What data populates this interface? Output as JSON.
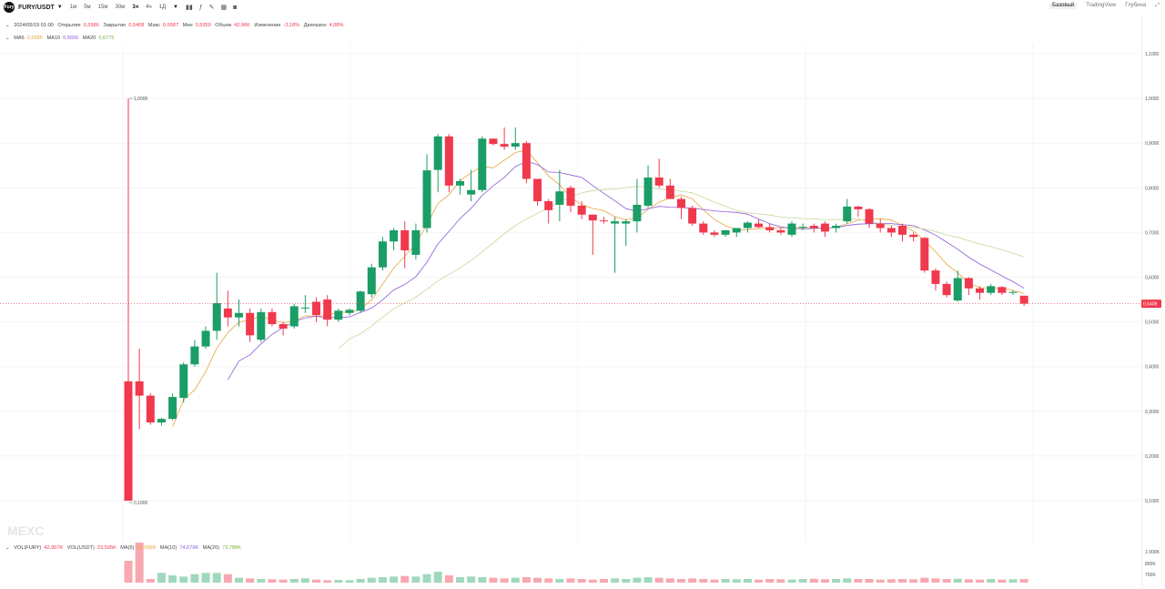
{
  "toolbar": {
    "pair": "FURY/USDT",
    "intervals": [
      "1м",
      "5м",
      "15м",
      "30м",
      "1ч",
      "4ч",
      "1Д"
    ],
    "tools": [
      "candles-icon",
      "indicator-icon",
      "pencil-icon",
      "grid-icon",
      "camera-icon"
    ],
    "views": [
      "Базовый",
      "TradingView",
      "Глубина"
    ],
    "active_view": "Базовый"
  },
  "info": {
    "date": "2024/05/19 01:00",
    "open_label": "Открытие",
    "open": "0,5586",
    "close_label": "Закрытие",
    "close": "0,5408",
    "high_label": "Макс",
    "high": "0,5587",
    "low_label": "Мин",
    "low": "0,5359",
    "volume_label": "Объем",
    "volume": "42,96K",
    "change_label": "Изменение",
    "change": "-3,18%",
    "range_label": "Диапазон",
    "range": "4,08%"
  },
  "ma": {
    "ma5_label": "MA5",
    "ma5": "0,5585",
    "ma10_label": "MA10",
    "ma10": "0,5656",
    "ma20_label": "MA20",
    "ma20": "0,6775"
  },
  "vol": {
    "vol_fury_label": "VOL(FURY)",
    "vol_fury": "42,957K",
    "vol_usdt_label": "VOL(USDT)",
    "vol_usdt": "23,595K",
    "ma5_label": "MA(5)",
    "ma5": "91,556K",
    "ma10_label": "MA(10)",
    "ma10": "74,679K",
    "ma20_label": "MA(20)",
    "ma20": "73,788K"
  },
  "watermark": "MEXC",
  "chart_data": {
    "type": "candlestick",
    "y_ticks": [
      "1,1000",
      "1,0000",
      "0,9000",
      "0,8000",
      "0,7000",
      "0,6000",
      "0,5000",
      "0,4000",
      "0,3000",
      "0,2000",
      "0,1000"
    ],
    "y_tick_values": [
      1.1,
      1.0,
      0.9,
      0.8,
      0.7,
      0.6,
      0.5,
      0.4,
      0.3,
      0.2,
      0.1
    ],
    "ylim": [
      0.1,
      1.1
    ],
    "last_price": "0,5408",
    "last_price_value": 0.5408,
    "annotations": {
      "high_label": "1,0000",
      "high_value": 1.0,
      "low_label": "0,1000",
      "low_value": 0.1
    },
    "candles": [
      {
        "o": 0.367,
        "h": 1.0,
        "l": 0.1,
        "c": 0.1
      },
      {
        "o": 0.367,
        "h": 0.44,
        "l": 0.26,
        "c": 0.335
      },
      {
        "o": 0.335,
        "h": 0.34,
        "l": 0.27,
        "c": 0.275
      },
      {
        "o": 0.275,
        "h": 0.285,
        "l": 0.268,
        "c": 0.283
      },
      {
        "o": 0.283,
        "h": 0.34,
        "l": 0.28,
        "c": 0.332
      },
      {
        "o": 0.33,
        "h": 0.41,
        "l": 0.32,
        "c": 0.405
      },
      {
        "o": 0.405,
        "h": 0.46,
        "l": 0.4,
        "c": 0.445
      },
      {
        "o": 0.445,
        "h": 0.49,
        "l": 0.44,
        "c": 0.48
      },
      {
        "o": 0.48,
        "h": 0.61,
        "l": 0.46,
        "c": 0.542
      },
      {
        "o": 0.53,
        "h": 0.57,
        "l": 0.49,
        "c": 0.51
      },
      {
        "o": 0.51,
        "h": 0.55,
        "l": 0.49,
        "c": 0.52
      },
      {
        "o": 0.52,
        "h": 0.53,
        "l": 0.455,
        "c": 0.47
      },
      {
        "o": 0.46,
        "h": 0.53,
        "l": 0.455,
        "c": 0.522
      },
      {
        "o": 0.522,
        "h": 0.53,
        "l": 0.49,
        "c": 0.495
      },
      {
        "o": 0.495,
        "h": 0.5,
        "l": 0.47,
        "c": 0.485
      },
      {
        "o": 0.49,
        "h": 0.54,
        "l": 0.485,
        "c": 0.535
      },
      {
        "o": 0.53,
        "h": 0.56,
        "l": 0.52,
        "c": 0.532
      },
      {
        "o": 0.545,
        "h": 0.555,
        "l": 0.5,
        "c": 0.515
      },
      {
        "o": 0.55,
        "h": 0.56,
        "l": 0.49,
        "c": 0.505
      },
      {
        "o": 0.505,
        "h": 0.53,
        "l": 0.5,
        "c": 0.525
      },
      {
        "o": 0.52,
        "h": 0.53,
        "l": 0.515,
        "c": 0.527
      },
      {
        "o": 0.525,
        "h": 0.57,
        "l": 0.52,
        "c": 0.568
      },
      {
        "o": 0.562,
        "h": 0.63,
        "l": 0.555,
        "c": 0.622
      },
      {
        "o": 0.622,
        "h": 0.69,
        "l": 0.615,
        "c": 0.68
      },
      {
        "o": 0.68,
        "h": 0.71,
        "l": 0.66,
        "c": 0.705
      },
      {
        "o": 0.705,
        "h": 0.725,
        "l": 0.62,
        "c": 0.66
      },
      {
        "o": 0.65,
        "h": 0.72,
        "l": 0.64,
        "c": 0.705
      },
      {
        "o": 0.71,
        "h": 0.875,
        "l": 0.7,
        "c": 0.839
      },
      {
        "o": 0.84,
        "h": 0.92,
        "l": 0.79,
        "c": 0.915
      },
      {
        "o": 0.915,
        "h": 0.92,
        "l": 0.79,
        "c": 0.805
      },
      {
        "o": 0.805,
        "h": 0.82,
        "l": 0.785,
        "c": 0.815
      },
      {
        "o": 0.785,
        "h": 0.84,
        "l": 0.77,
        "c": 0.795
      },
      {
        "o": 0.795,
        "h": 0.915,
        "l": 0.79,
        "c": 0.91
      },
      {
        "o": 0.91,
        "h": 0.91,
        "l": 0.895,
        "c": 0.898
      },
      {
        "o": 0.898,
        "h": 0.935,
        "l": 0.885,
        "c": 0.892
      },
      {
        "o": 0.892,
        "h": 0.935,
        "l": 0.885,
        "c": 0.9
      },
      {
        "o": 0.9,
        "h": 0.905,
        "l": 0.81,
        "c": 0.82
      },
      {
        "o": 0.82,
        "h": 0.82,
        "l": 0.76,
        "c": 0.77
      },
      {
        "o": 0.77,
        "h": 0.775,
        "l": 0.72,
        "c": 0.75
      },
      {
        "o": 0.762,
        "h": 0.84,
        "l": 0.725,
        "c": 0.792
      },
      {
        "o": 0.8,
        "h": 0.805,
        "l": 0.745,
        "c": 0.76
      },
      {
        "o": 0.76,
        "h": 0.77,
        "l": 0.73,
        "c": 0.74
      },
      {
        "o": 0.74,
        "h": 0.74,
        "l": 0.65,
        "c": 0.727
      },
      {
        "o": 0.727,
        "h": 0.735,
        "l": 0.72,
        "c": 0.725
      },
      {
        "o": 0.72,
        "h": 0.735,
        "l": 0.61,
        "c": 0.725
      },
      {
        "o": 0.72,
        "h": 0.73,
        "l": 0.67,
        "c": 0.725
      },
      {
        "o": 0.725,
        "h": 0.82,
        "l": 0.7,
        "c": 0.762
      },
      {
        "o": 0.76,
        "h": 0.85,
        "l": 0.755,
        "c": 0.823
      },
      {
        "o": 0.823,
        "h": 0.865,
        "l": 0.8,
        "c": 0.805
      },
      {
        "o": 0.805,
        "h": 0.82,
        "l": 0.775,
        "c": 0.775
      },
      {
        "o": 0.775,
        "h": 0.78,
        "l": 0.73,
        "c": 0.755
      },
      {
        "o": 0.755,
        "h": 0.76,
        "l": 0.715,
        "c": 0.72
      },
      {
        "o": 0.72,
        "h": 0.725,
        "l": 0.695,
        "c": 0.7
      },
      {
        "o": 0.7,
        "h": 0.705,
        "l": 0.69,
        "c": 0.695
      },
      {
        "o": 0.695,
        "h": 0.705,
        "l": 0.69,
        "c": 0.705
      },
      {
        "o": 0.7,
        "h": 0.71,
        "l": 0.69,
        "c": 0.71
      },
      {
        "o": 0.71,
        "h": 0.725,
        "l": 0.7,
        "c": 0.722
      },
      {
        "o": 0.72,
        "h": 0.73,
        "l": 0.71,
        "c": 0.712
      },
      {
        "o": 0.712,
        "h": 0.72,
        "l": 0.7,
        "c": 0.705
      },
      {
        "o": 0.705,
        "h": 0.71,
        "l": 0.695,
        "c": 0.7
      },
      {
        "o": 0.695,
        "h": 0.725,
        "l": 0.69,
        "c": 0.72
      },
      {
        "o": 0.712,
        "h": 0.72,
        "l": 0.705,
        "c": 0.713
      },
      {
        "o": 0.715,
        "h": 0.72,
        "l": 0.7,
        "c": 0.71
      },
      {
        "o": 0.72,
        "h": 0.725,
        "l": 0.69,
        "c": 0.702
      },
      {
        "o": 0.71,
        "h": 0.72,
        "l": 0.7,
        "c": 0.715
      },
      {
        "o": 0.725,
        "h": 0.775,
        "l": 0.72,
        "c": 0.758
      },
      {
        "o": 0.758,
        "h": 0.76,
        "l": 0.735,
        "c": 0.752
      },
      {
        "o": 0.752,
        "h": 0.755,
        "l": 0.71,
        "c": 0.72
      },
      {
        "o": 0.72,
        "h": 0.73,
        "l": 0.7,
        "c": 0.71
      },
      {
        "o": 0.71,
        "h": 0.715,
        "l": 0.69,
        "c": 0.7
      },
      {
        "o": 0.715,
        "h": 0.72,
        "l": 0.68,
        "c": 0.695
      },
      {
        "o": 0.695,
        "h": 0.7,
        "l": 0.68,
        "c": 0.69
      },
      {
        "o": 0.688,
        "h": 0.69,
        "l": 0.61,
        "c": 0.615
      },
      {
        "o": 0.615,
        "h": 0.62,
        "l": 0.57,
        "c": 0.585
      },
      {
        "o": 0.585,
        "h": 0.59,
        "l": 0.555,
        "c": 0.56
      },
      {
        "o": 0.548,
        "h": 0.615,
        "l": 0.545,
        "c": 0.598
      },
      {
        "o": 0.598,
        "h": 0.6,
        "l": 0.56,
        "c": 0.575
      },
      {
        "o": 0.575,
        "h": 0.58,
        "l": 0.55,
        "c": 0.565
      },
      {
        "o": 0.565,
        "h": 0.585,
        "l": 0.56,
        "c": 0.58
      },
      {
        "o": 0.578,
        "h": 0.58,
        "l": 0.56,
        "c": 0.565
      },
      {
        "o": 0.566,
        "h": 0.57,
        "l": 0.56,
        "c": 0.567
      },
      {
        "o": 0.5586,
        "h": 0.5587,
        "l": 0.5359,
        "c": 0.5408
      }
    ],
    "volume": {
      "y_ticks": [
        "1 000K",
        "800K",
        "700K"
      ],
      "values": [
        180,
        330,
        30,
        80,
        60,
        50,
        70,
        80,
        80,
        70,
        40,
        35,
        30,
        28,
        25,
        30,
        35,
        25,
        20,
        22,
        20,
        30,
        40,
        45,
        50,
        55,
        50,
        70,
        90,
        60,
        45,
        50,
        45,
        40,
        35,
        40,
        45,
        40,
        35,
        30,
        35,
        30,
        25,
        30,
        35,
        30,
        40,
        45,
        40,
        35,
        30,
        35,
        30,
        25,
        30,
        28,
        30,
        25,
        30,
        28,
        25,
        30,
        32,
        28,
        30,
        35,
        30,
        30,
        25,
        28,
        30,
        28,
        40,
        35,
        30,
        32,
        28,
        25,
        30,
        25,
        28,
        30
      ]
    }
  }
}
